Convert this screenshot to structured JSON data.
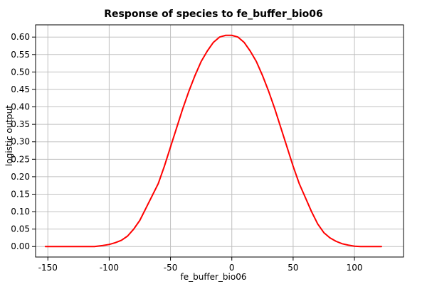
{
  "chart_data": {
    "type": "line",
    "title": "Response of species to fe_buffer_bio06",
    "xlabel": "fe_buffer_bio06",
    "ylabel": "logistic output",
    "xlim": [
      -160,
      140
    ],
    "ylim": [
      -0.03,
      0.635
    ],
    "xticks": [
      -150,
      -100,
      -50,
      0,
      50,
      100
    ],
    "yticks": [
      0.0,
      0.05,
      0.1,
      0.15,
      0.2,
      0.25,
      0.3,
      0.35,
      0.4,
      0.45,
      0.5,
      0.55,
      0.6
    ],
    "grid": true,
    "line_color": "#ff0000",
    "series": [
      {
        "x": [
          -152,
          -140,
          -130,
          -120,
          -112,
          -105,
          -100,
          -95,
          -90,
          -85,
          -80,
          -75,
          -70,
          -65,
          -60,
          -55,
          -50,
          -45,
          -40,
          -35,
          -30,
          -25,
          -20,
          -15,
          -10,
          -5,
          0,
          5,
          10,
          15,
          20,
          25,
          30,
          35,
          40,
          45,
          50,
          55,
          60,
          65,
          70,
          75,
          80,
          85,
          90,
          95,
          100,
          105,
          112,
          122
        ],
        "y": [
          0.0,
          0.0,
          0.0,
          0.0,
          0.0,
          0.003,
          0.006,
          0.011,
          0.018,
          0.03,
          0.05,
          0.075,
          0.11,
          0.145,
          0.18,
          0.23,
          0.285,
          0.34,
          0.395,
          0.445,
          0.49,
          0.53,
          0.56,
          0.585,
          0.6,
          0.605,
          0.605,
          0.6,
          0.585,
          0.56,
          0.53,
          0.49,
          0.445,
          0.395,
          0.34,
          0.285,
          0.23,
          0.18,
          0.14,
          0.1,
          0.065,
          0.04,
          0.025,
          0.015,
          0.008,
          0.004,
          0.001,
          0.0,
          0.0,
          0.0
        ]
      }
    ]
  }
}
